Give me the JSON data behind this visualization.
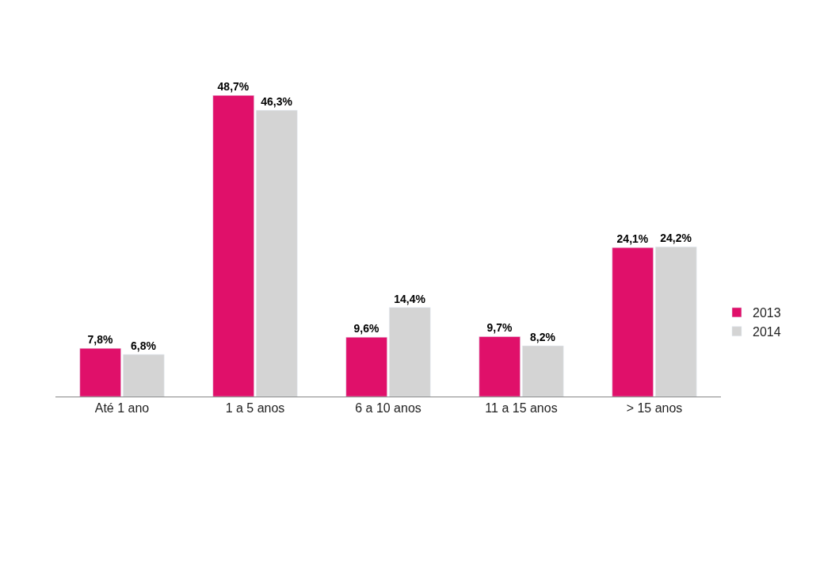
{
  "chart_data": {
    "type": "bar",
    "categories": [
      "Até 1 ano",
      "1 a 5 anos",
      "6 a 10 anos",
      "11 a 15 anos",
      "> 15 anos"
    ],
    "series": [
      {
        "name": "2013",
        "color": "#e0106a",
        "values": [
          7.8,
          48.7,
          9.6,
          9.7,
          24.1
        ],
        "value_labels": [
          "7,8%",
          "48,7%",
          "9,6%",
          "9,7%",
          "24,1%"
        ]
      },
      {
        "name": "2014",
        "color": "#d4d4d4",
        "values": [
          6.8,
          46.3,
          14.4,
          8.2,
          24.2
        ],
        "value_labels": [
          "6,8%",
          "46,3%",
          "14,4%",
          "8,2%",
          "24,2%"
        ]
      }
    ],
    "legend": "right"
  }
}
